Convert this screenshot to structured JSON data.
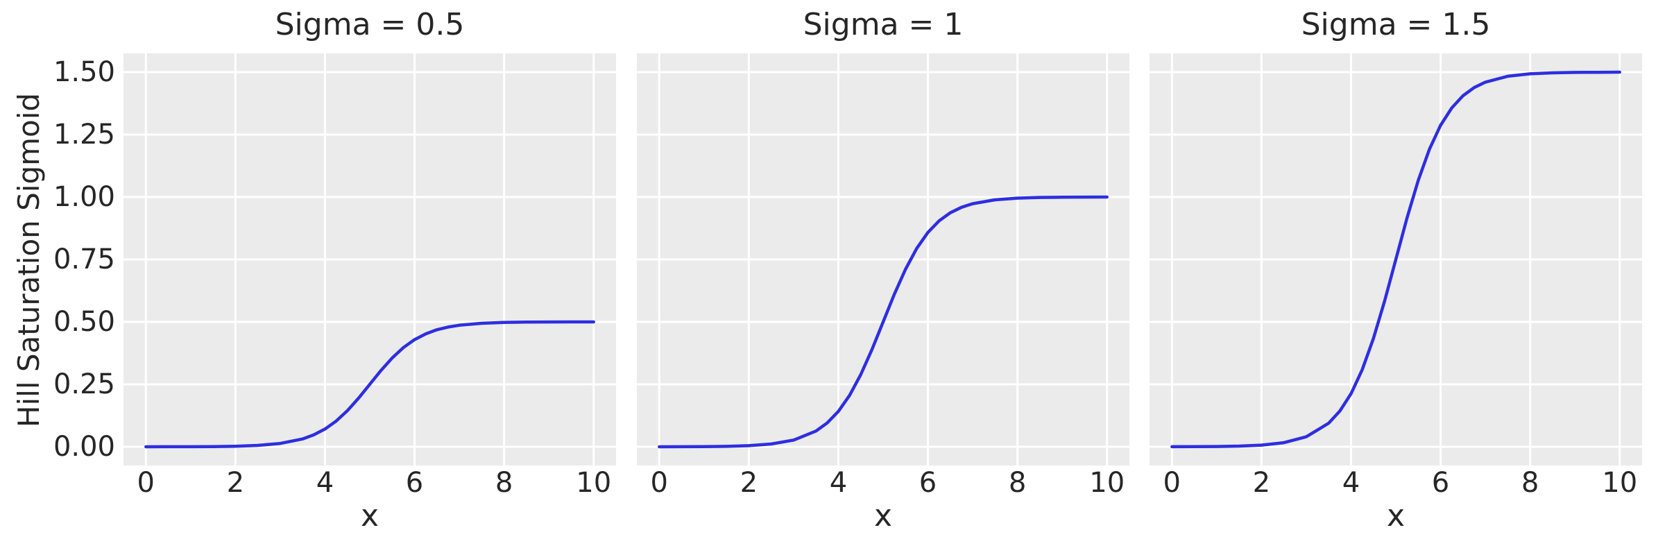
{
  "figure": {
    "background": "#ffffff",
    "axes_background": "#ebebeb",
    "grid_color": "#ffffff",
    "text_color": "#262626",
    "line_color": "#2e2ee0",
    "ylabel": "Hill Saturation Sigmoid"
  },
  "chart_data": [
    {
      "type": "line",
      "title": "Sigma = 0.5",
      "xlabel": "x",
      "sigma": 0.5,
      "line_color": "#2e2ee0",
      "xlim": [
        -0.5,
        10.5
      ],
      "ylim": [
        -0.075,
        1.575
      ],
      "grid": true,
      "legend": false,
      "show_y_tick_labels": true,
      "x_tick_values": [
        0,
        2,
        4,
        6,
        8,
        10
      ],
      "x_tick_labels": [
        "0",
        "2",
        "4",
        "6",
        "8",
        "10"
      ],
      "y_tick_values": [
        0,
        0.25,
        0.5,
        0.75,
        1.0,
        1.25,
        1.5
      ],
      "y_tick_labels": [
        "0.00",
        "0.25",
        "0.50",
        "0.75",
        "1.00",
        "1.25",
        "1.50"
      ],
      "x": [
        0,
        0.5,
        1,
        1.5,
        2,
        2.5,
        3,
        3.5,
        3.75,
        4,
        4.25,
        4.5,
        4.75,
        5,
        5.25,
        5.5,
        5.75,
        6,
        6.25,
        6.5,
        6.75,
        7,
        7.5,
        8,
        8.5,
        9,
        9.5,
        10
      ],
      "y": [
        0.0001,
        0.0002,
        0.0004,
        0.0009,
        0.0022,
        0.0055,
        0.0133,
        0.0315,
        0.0477,
        0.071,
        0.103,
        0.1445,
        0.1947,
        0.25,
        0.3053,
        0.3555,
        0.397,
        0.429,
        0.4523,
        0.4685,
        0.4795,
        0.4867,
        0.4945,
        0.4978,
        0.4991,
        0.4996,
        0.4999,
        0.5
      ]
    },
    {
      "type": "line",
      "title": "Sigma = 1",
      "xlabel": "x",
      "sigma": 1,
      "line_color": "#2e2ee0",
      "xlim": [
        -0.5,
        10.5
      ],
      "ylim": [
        -0.075,
        1.575
      ],
      "grid": true,
      "legend": false,
      "show_y_tick_labels": false,
      "x_tick_values": [
        0,
        2,
        4,
        6,
        8,
        10
      ],
      "x_tick_labels": [
        "0",
        "2",
        "4",
        "6",
        "8",
        "10"
      ],
      "y_tick_values": [
        0,
        0.25,
        0.5,
        0.75,
        1.0,
        1.25,
        1.5
      ],
      "y_tick_labels": [],
      "x": [
        0,
        0.5,
        1,
        1.5,
        2,
        2.5,
        3,
        3.5,
        3.75,
        4,
        4.25,
        4.5,
        4.75,
        5,
        5.25,
        5.5,
        5.75,
        6,
        6.25,
        6.5,
        6.75,
        7,
        7.5,
        8,
        8.5,
        9,
        9.5,
        10
      ],
      "y": [
        0.0001,
        0.0003,
        0.0008,
        0.0018,
        0.0045,
        0.011,
        0.0266,
        0.063,
        0.0954,
        0.1419,
        0.2059,
        0.289,
        0.3894,
        0.5,
        0.6106,
        0.711,
        0.7941,
        0.8581,
        0.9046,
        0.937,
        0.9589,
        0.9734,
        0.989,
        0.9955,
        0.9982,
        0.9993,
        0.9997,
        0.9999
      ]
    },
    {
      "type": "line",
      "title": "Sigma = 1.5",
      "xlabel": "x",
      "sigma": 1.5,
      "line_color": "#2e2ee0",
      "xlim": [
        -0.5,
        10.5
      ],
      "ylim": [
        -0.075,
        1.575
      ],
      "grid": true,
      "legend": false,
      "show_y_tick_labels": false,
      "x_tick_values": [
        0,
        2,
        4,
        6,
        8,
        10
      ],
      "x_tick_labels": [
        "0",
        "2",
        "4",
        "6",
        "8",
        "10"
      ],
      "y_tick_values": [
        0,
        0.25,
        0.5,
        0.75,
        1.0,
        1.25,
        1.5
      ],
      "y_tick_labels": [],
      "x": [
        0,
        0.5,
        1,
        1.5,
        2,
        2.5,
        3,
        3.5,
        3.75,
        4,
        4.25,
        4.5,
        4.75,
        5,
        5.25,
        5.5,
        5.75,
        6,
        6.25,
        6.5,
        6.75,
        7,
        7.5,
        8,
        8.5,
        9,
        9.5,
        10
      ],
      "y": [
        0.0002,
        0.0005,
        0.0011,
        0.0027,
        0.0067,
        0.0165,
        0.0399,
        0.0944,
        0.1431,
        0.2129,
        0.3089,
        0.4335,
        0.5841,
        0.75,
        0.9159,
        1.0665,
        1.1911,
        1.2871,
        1.3569,
        1.4056,
        1.4383,
        1.4601,
        1.4835,
        1.4933,
        1.4973,
        1.4989,
        1.4995,
        1.4999
      ]
    }
  ]
}
